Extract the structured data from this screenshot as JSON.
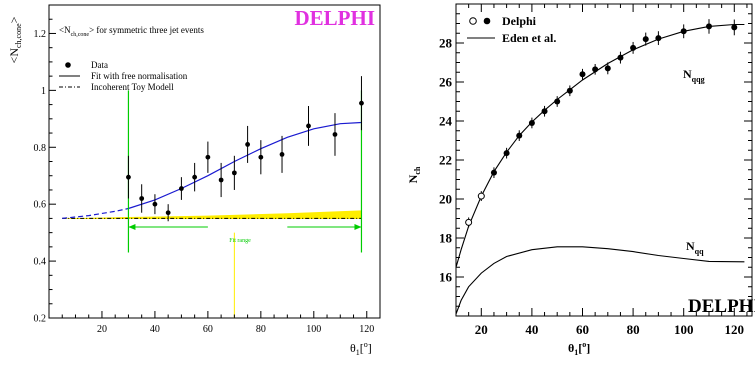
{
  "chart_data": [
    {
      "type": "scatter",
      "title": "DELPHI",
      "title_color": "#e030e0",
      "subtitle_main": "<N",
      "subtitle_sub": "ch,cone",
      "subtitle_rest": "> for symmetric three jet events",
      "ylabel_main": "<N",
      "ylabel_sub": "ch,cone",
      "ylabel_close": ">",
      "xlabel_main": "θ",
      "xlabel_sub": "1",
      "xlabel_unit": "[",
      "xlabel_deg": "o",
      "xlabel_end": "]",
      "xlim": [
        0,
        125
      ],
      "ylim": [
        0.2,
        1.3
      ],
      "xticks": [
        20,
        40,
        60,
        80,
        100,
        120
      ],
      "yticks": [
        0.2,
        0.4,
        0.6,
        0.8,
        1.0,
        1.2
      ],
      "ytick_labels": [
        "0.2",
        "0.4",
        "0.6",
        "0.8",
        "1",
        "1.2"
      ],
      "legend": [
        {
          "label": "Data",
          "style": "marker"
        },
        {
          "label": "Fit with free normalisation",
          "style": "solid"
        },
        {
          "label": "Incoherent Toy Modell",
          "style": "dashdot"
        }
      ],
      "fit_range_label": "Fit range",
      "fit_range": [
        30,
        118
      ],
      "colors": {
        "fit": "#1a1ad0",
        "band": "#ffee00",
        "green": "#00cc00",
        "marker": "#000000"
      },
      "data": [
        {
          "x": 30,
          "y": 0.695,
          "err": 0.075
        },
        {
          "x": 35,
          "y": 0.62,
          "err": 0.05
        },
        {
          "x": 40,
          "y": 0.6,
          "err": 0.035
        },
        {
          "x": 45,
          "y": 0.57,
          "err": 0.03
        },
        {
          "x": 50,
          "y": 0.655,
          "err": 0.04
        },
        {
          "x": 55,
          "y": 0.695,
          "err": 0.05
        },
        {
          "x": 60,
          "y": 0.765,
          "err": 0.055
        },
        {
          "x": 65,
          "y": 0.685,
          "err": 0.06
        },
        {
          "x": 70,
          "y": 0.71,
          "err": 0.06
        },
        {
          "x": 75,
          "y": 0.81,
          "err": 0.065
        },
        {
          "x": 80,
          "y": 0.765,
          "err": 0.06
        },
        {
          "x": 88,
          "y": 0.775,
          "err": 0.065
        },
        {
          "x": 98,
          "y": 0.875,
          "err": 0.07
        },
        {
          "x": 108,
          "y": 0.845,
          "err": 0.075
        },
        {
          "x": 118,
          "y": 0.955,
          "err": 0.095
        }
      ],
      "fit_curve": [
        {
          "x": 5,
          "y": 0.55
        },
        {
          "x": 15,
          "y": 0.56
        },
        {
          "x": 25,
          "y": 0.575
        },
        {
          "x": 30,
          "y": 0.585
        },
        {
          "x": 40,
          "y": 0.615
        },
        {
          "x": 50,
          "y": 0.655
        },
        {
          "x": 60,
          "y": 0.7
        },
        {
          "x": 70,
          "y": 0.75
        },
        {
          "x": 80,
          "y": 0.795
        },
        {
          "x": 90,
          "y": 0.835
        },
        {
          "x": 100,
          "y": 0.865
        },
        {
          "x": 110,
          "y": 0.883
        },
        {
          "x": 118,
          "y": 0.887
        }
      ],
      "toy_line": [
        {
          "x": 5,
          "y": 0.55
        },
        {
          "x": 118,
          "y": 0.55
        }
      ],
      "band_upper": [
        {
          "x": 5,
          "y": 0.55
        },
        {
          "x": 30,
          "y": 0.555
        },
        {
          "x": 60,
          "y": 0.56
        },
        {
          "x": 90,
          "y": 0.568
        },
        {
          "x": 118,
          "y": 0.578
        }
      ],
      "band_lower": [
        {
          "x": 5,
          "y": 0.548
        },
        {
          "x": 118,
          "y": 0.548
        }
      ]
    },
    {
      "type": "scatter",
      "ylabel_main": "N",
      "ylabel_sub": "ch",
      "xlabel_main": "θ",
      "xlabel_sub": "1",
      "xlabel_deg": "o",
      "xlabel_unit": "[",
      "xlabel_end": "]",
      "xlim": [
        10,
        127
      ],
      "ylim": [
        14,
        30
      ],
      "xticks": [
        20,
        40,
        60,
        80,
        100,
        120
      ],
      "yticks": [
        16,
        18,
        20,
        22,
        24,
        26,
        28
      ],
      "legend": [
        {
          "label": "Delphi",
          "style": "open-filled"
        },
        {
          "label": "Eden et al.",
          "style": "solid"
        }
      ],
      "watermark": "DELPHI",
      "annotations": [
        {
          "main": "N",
          "sub": "qqg"
        },
        {
          "main": "N",
          "sub": "qq"
        }
      ],
      "open_points": [
        {
          "x": 15,
          "y": 18.8,
          "err": 0.1
        },
        {
          "x": 20,
          "y": 20.15,
          "err": 0.1
        }
      ],
      "filled_points": [
        {
          "x": 25,
          "y": 21.35,
          "err": 0.12
        },
        {
          "x": 30,
          "y": 22.35,
          "err": 0.12
        },
        {
          "x": 35,
          "y": 23.25,
          "err": 0.12
        },
        {
          "x": 40,
          "y": 23.9,
          "err": 0.12
        },
        {
          "x": 45,
          "y": 24.5,
          "err": 0.12
        },
        {
          "x": 50,
          "y": 25.0,
          "err": 0.12
        },
        {
          "x": 55,
          "y": 25.55,
          "err": 0.12
        },
        {
          "x": 60,
          "y": 26.4,
          "err": 0.12
        },
        {
          "x": 65,
          "y": 26.65,
          "err": 0.12
        },
        {
          "x": 70,
          "y": 26.7,
          "err": 0.15
        },
        {
          "x": 75,
          "y": 27.25,
          "err": 0.15
        },
        {
          "x": 80,
          "y": 27.75,
          "err": 0.15
        },
        {
          "x": 85,
          "y": 28.2,
          "err": 0.18
        },
        {
          "x": 90,
          "y": 28.25,
          "err": 0.2
        },
        {
          "x": 100,
          "y": 28.6,
          "err": 0.2
        },
        {
          "x": 110,
          "y": 28.85,
          "err": 0.22
        },
        {
          "x": 120,
          "y": 28.8,
          "err": 0.25
        }
      ],
      "n_qqg_curve": [
        {
          "x": 10,
          "y": 16.5
        },
        {
          "x": 12,
          "y": 17.4
        },
        {
          "x": 15,
          "y": 18.6
        },
        {
          "x": 20,
          "y": 20.15
        },
        {
          "x": 25,
          "y": 21.4
        },
        {
          "x": 30,
          "y": 22.4
        },
        {
          "x": 35,
          "y": 23.25
        },
        {
          "x": 40,
          "y": 23.95
        },
        {
          "x": 45,
          "y": 24.55
        },
        {
          "x": 50,
          "y": 25.1
        },
        {
          "x": 55,
          "y": 25.6
        },
        {
          "x": 60,
          "y": 26.1
        },
        {
          "x": 70,
          "y": 26.95
        },
        {
          "x": 80,
          "y": 27.65
        },
        {
          "x": 90,
          "y": 28.2
        },
        {
          "x": 100,
          "y": 28.6
        },
        {
          "x": 110,
          "y": 28.85
        },
        {
          "x": 120,
          "y": 28.95
        },
        {
          "x": 124,
          "y": 28.95
        }
      ],
      "n_qq_curve": [
        {
          "x": 10,
          "y": 14.1
        },
        {
          "x": 12,
          "y": 14.8
        },
        {
          "x": 15,
          "y": 15.5
        },
        {
          "x": 20,
          "y": 16.2
        },
        {
          "x": 25,
          "y": 16.7
        },
        {
          "x": 30,
          "y": 17.05
        },
        {
          "x": 40,
          "y": 17.4
        },
        {
          "x": 50,
          "y": 17.55
        },
        {
          "x": 60,
          "y": 17.55
        },
        {
          "x": 70,
          "y": 17.45
        },
        {
          "x": 80,
          "y": 17.3
        },
        {
          "x": 90,
          "y": 17.1
        },
        {
          "x": 100,
          "y": 16.95
        },
        {
          "x": 110,
          "y": 16.8
        },
        {
          "x": 124,
          "y": 16.78
        }
      ]
    }
  ]
}
